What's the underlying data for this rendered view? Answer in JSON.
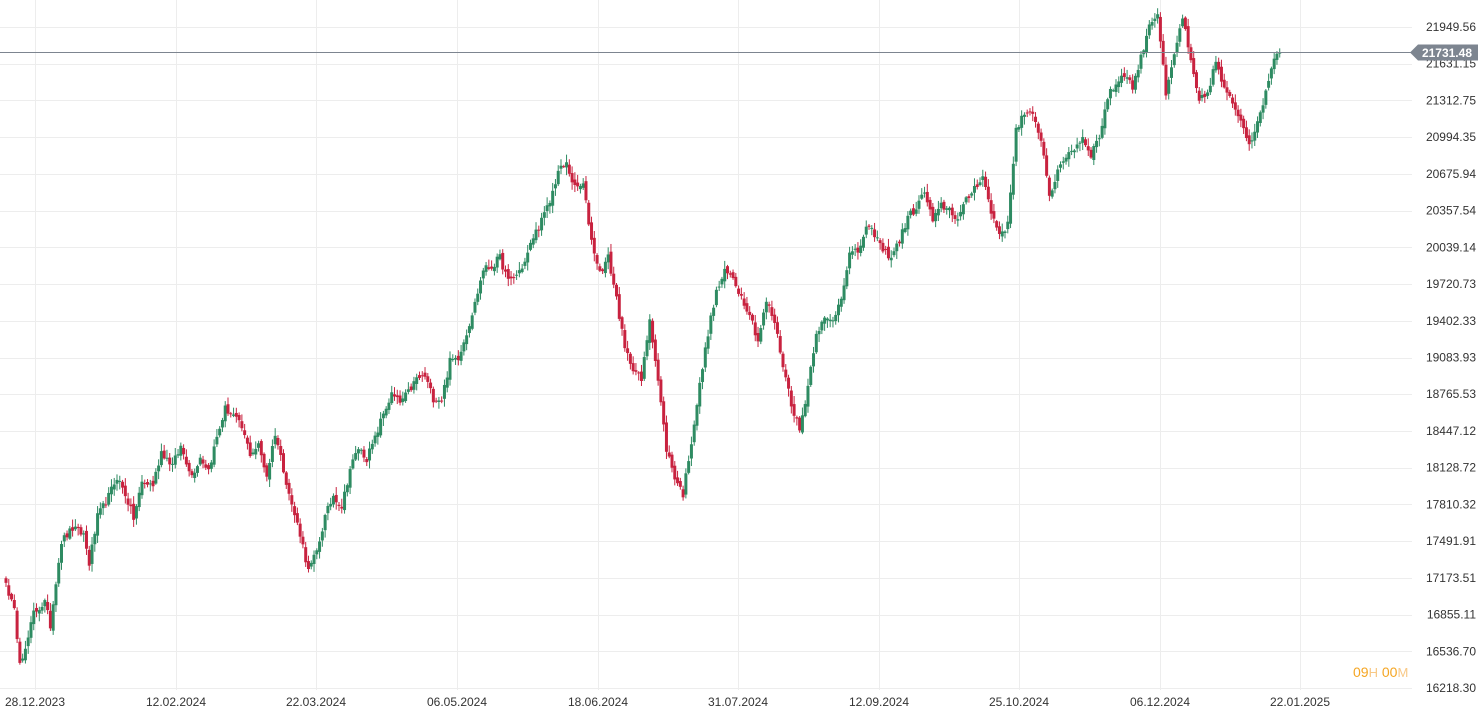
{
  "colors": {
    "up": "#2e8b62",
    "down": "#c8223f",
    "grid": "#ededed",
    "axis_text": "#333333",
    "price_line": "#7d8590",
    "price_tag_bg": "#7d8590",
    "price_tag_text": "#ffffff",
    "timer_num": "#f5a623",
    "timer_unit": "#f8c886"
  },
  "timer": {
    "hours": "09",
    "hours_unit": "H",
    "minutes": "00",
    "minutes_unit": "M"
  },
  "current_price_label": "21731.48",
  "chart_data": {
    "type": "candlestick",
    "title": "",
    "xlabel": "",
    "ylabel": "",
    "ylim": [
      16218.3,
      22110
    ],
    "grid": true,
    "current_price": 21731.48,
    "y_ticks": [
      "21949.56",
      "21631.15",
      "21312.75",
      "20994.35",
      "20675.94",
      "20357.54",
      "20039.14",
      "19720.73",
      "19402.33",
      "19083.93",
      "18765.53",
      "18447.12",
      "18128.72",
      "17810.32",
      "17491.91",
      "17173.51",
      "16855.11",
      "16536.70",
      "16218.30"
    ],
    "x_ticks": [
      "28.12.2023",
      "12.02.2024",
      "22.03.2024",
      "06.05.2024",
      "18.06.2024",
      "31.07.2024",
      "12.09.2024",
      "25.10.2024",
      "06.12.2024",
      "22.01.2025"
    ],
    "close_anchors": [
      [
        0,
        17130
      ],
      [
        3,
        16880
      ],
      [
        5,
        16470
      ],
      [
        7,
        16540
      ],
      [
        10,
        16870
      ],
      [
        14,
        16960
      ],
      [
        16,
        16760
      ],
      [
        18,
        17150
      ],
      [
        20,
        17490
      ],
      [
        24,
        17600
      ],
      [
        28,
        17550
      ],
      [
        30,
        17300
      ],
      [
        33,
        17700
      ],
      [
        37,
        17880
      ],
      [
        40,
        18050
      ],
      [
        43,
        17900
      ],
      [
        46,
        17690
      ],
      [
        49,
        18000
      ],
      [
        53,
        17980
      ],
      [
        56,
        18270
      ],
      [
        60,
        18150
      ],
      [
        63,
        18310
      ],
      [
        67,
        18060
      ],
      [
        70,
        18220
      ],
      [
        73,
        18110
      ],
      [
        76,
        18390
      ],
      [
        79,
        18640
      ],
      [
        82,
        18580
      ],
      [
        85,
        18470
      ],
      [
        88,
        18250
      ],
      [
        91,
        18320
      ],
      [
        94,
        18060
      ],
      [
        97,
        18430
      ],
      [
        100,
        18120
      ],
      [
        103,
        17800
      ],
      [
        106,
        17560
      ],
      [
        109,
        17230
      ],
      [
        112,
        17400
      ],
      [
        115,
        17700
      ],
      [
        118,
        17890
      ],
      [
        121,
        17790
      ],
      [
        124,
        18120
      ],
      [
        127,
        18300
      ],
      [
        130,
        18210
      ],
      [
        133,
        18380
      ],
      [
        136,
        18600
      ],
      [
        139,
        18760
      ],
      [
        142,
        18690
      ],
      [
        145,
        18780
      ],
      [
        148,
        18900
      ],
      [
        151,
        18920
      ],
      [
        154,
        18730
      ],
      [
        157,
        18720
      ],
      [
        160,
        19050
      ],
      [
        163,
        19090
      ],
      [
        166,
        19300
      ],
      [
        169,
        19550
      ],
      [
        172,
        19850
      ],
      [
        175,
        19870
      ],
      [
        178,
        19950
      ],
      [
        181,
        19740
      ],
      [
        184,
        19800
      ],
      [
        187,
        19910
      ],
      [
        190,
        20130
      ],
      [
        193,
        20270
      ],
      [
        196,
        20430
      ],
      [
        199,
        20700
      ],
      [
        202,
        20760
      ],
      [
        205,
        20550
      ],
      [
        208,
        20580
      ],
      [
        211,
        20100
      ],
      [
        214,
        19820
      ],
      [
        217,
        19950
      ],
      [
        220,
        19600
      ],
      [
        223,
        19150
      ],
      [
        226,
        19000
      ],
      [
        229,
        18880
      ],
      [
        232,
        19430
      ],
      [
        235,
        18880
      ],
      [
        238,
        18290
      ],
      [
        241,
        18050
      ],
      [
        244,
        17900
      ],
      [
        247,
        18360
      ],
      [
        250,
        18840
      ],
      [
        253,
        19300
      ],
      [
        256,
        19650
      ],
      [
        259,
        19820
      ],
      [
        262,
        19780
      ],
      [
        265,
        19610
      ],
      [
        268,
        19470
      ],
      [
        271,
        19230
      ],
      [
        274,
        19570
      ],
      [
        277,
        19390
      ],
      [
        280,
        19020
      ],
      [
        283,
        18690
      ],
      [
        286,
        18450
      ],
      [
        289,
        18840
      ],
      [
        292,
        19310
      ],
      [
        295,
        19410
      ],
      [
        298,
        19400
      ],
      [
        301,
        19620
      ],
      [
        304,
        19980
      ],
      [
        307,
        20000
      ],
      [
        310,
        20200
      ],
      [
        313,
        20160
      ],
      [
        316,
        20010
      ],
      [
        319,
        19960
      ],
      [
        322,
        20100
      ],
      [
        325,
        20300
      ],
      [
        328,
        20380
      ],
      [
        331,
        20520
      ],
      [
        334,
        20260
      ],
      [
        337,
        20400
      ],
      [
        340,
        20370
      ],
      [
        343,
        20280
      ],
      [
        346,
        20440
      ],
      [
        349,
        20560
      ],
      [
        352,
        20660
      ],
      [
        355,
        20340
      ],
      [
        358,
        20160
      ],
      [
        361,
        20230
      ],
      [
        364,
        21070
      ],
      [
        367,
        21200
      ],
      [
        370,
        21170
      ],
      [
        373,
        20990
      ],
      [
        376,
        20500
      ],
      [
        379,
        20680
      ],
      [
        382,
        20840
      ],
      [
        385,
        20900
      ],
      [
        388,
        20990
      ],
      [
        391,
        20850
      ],
      [
        394,
        21000
      ],
      [
        397,
        21340
      ],
      [
        400,
        21460
      ],
      [
        403,
        21550
      ],
      [
        406,
        21430
      ],
      [
        409,
        21680
      ],
      [
        412,
        21980
      ],
      [
        415,
        22070
      ],
      [
        418,
        21350
      ],
      [
        421,
        21700
      ],
      [
        424,
        22040
      ],
      [
        427,
        21630
      ],
      [
        430,
        21300
      ],
      [
        433,
        21380
      ],
      [
        436,
        21650
      ],
      [
        439,
        21400
      ],
      [
        442,
        21290
      ],
      [
        445,
        21150
      ],
      [
        448,
        20950
      ],
      [
        451,
        21100
      ],
      [
        454,
        21400
      ],
      [
        457,
        21700
      ],
      [
        459,
        21731.48
      ]
    ]
  }
}
